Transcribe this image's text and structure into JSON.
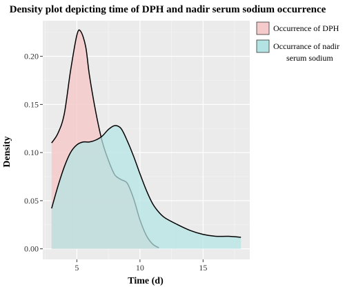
{
  "chart_data": {
    "type": "area",
    "title": "Density plot depicting time of DPH and nadir serum sodium occurrence",
    "xlabel": "Time (d)",
    "ylabel": "Density",
    "xlim": [
      2.3,
      18.7
    ],
    "ylim": [
      -0.011,
      0.237
    ],
    "x_ticks": [
      5,
      10,
      15
    ],
    "y_ticks": [
      0.0,
      0.05,
      0.1,
      0.15,
      0.2
    ],
    "y_tick_labels": [
      "0.00",
      "0.05",
      "0.10",
      "0.15",
      "0.20"
    ],
    "grid": true,
    "legend_position": "right",
    "series": [
      {
        "name": "Occurrence of DPH",
        "color": "#F4CACA",
        "x": [
          3.0,
          3.5,
          4.0,
          4.5,
          5.0,
          5.3,
          5.7,
          6.0,
          6.5,
          7.0,
          7.5,
          8.0,
          8.5,
          9.0,
          9.5,
          10.0,
          10.5,
          11.0,
          11.5
        ],
        "y": [
          0.11,
          0.12,
          0.14,
          0.185,
          0.222,
          0.226,
          0.21,
          0.18,
          0.142,
          0.112,
          0.092,
          0.077,
          0.072,
          0.068,
          0.052,
          0.03,
          0.014,
          0.005,
          0.001
        ]
      },
      {
        "name": "Occurrance of nadir serum sodium",
        "color": "#B3E3E3",
        "x": [
          3.0,
          3.5,
          4.0,
          4.5,
          5.0,
          5.5,
          6.0,
          6.5,
          7.0,
          7.5,
          8.0,
          8.5,
          9.0,
          9.5,
          10.0,
          10.5,
          11.0,
          11.5,
          12.0,
          13.0,
          14.0,
          15.0,
          16.0,
          17.0,
          18.0
        ],
        "y": [
          0.042,
          0.065,
          0.085,
          0.1,
          0.108,
          0.111,
          0.111,
          0.113,
          0.117,
          0.124,
          0.128,
          0.125,
          0.112,
          0.096,
          0.078,
          0.061,
          0.047,
          0.038,
          0.032,
          0.025,
          0.019,
          0.015,
          0.013,
          0.013,
          0.012
        ]
      }
    ]
  }
}
